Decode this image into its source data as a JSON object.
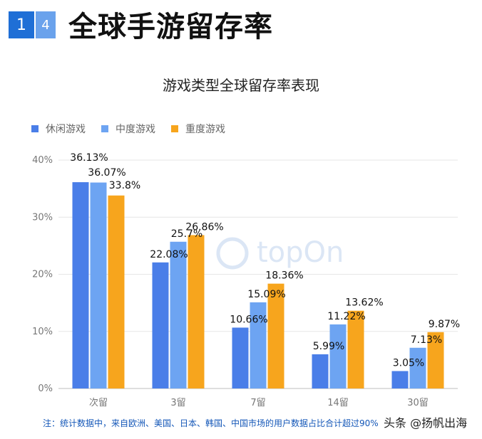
{
  "header": {
    "badge_1": "1",
    "badge_2": "4",
    "title": "全球手游留存率"
  },
  "colors": {
    "casual": "#4a7ee8",
    "midcore": "#6da4f2",
    "hardcore": "#f7a51d"
  },
  "chart_data": {
    "type": "bar",
    "title": "游戏类型全球留存率表现",
    "categories": [
      "次留",
      "3留",
      "7留",
      "14留",
      "30留"
    ],
    "series": [
      {
        "name": "休闲游戏",
        "values": [
          36.13,
          22.08,
          10.66,
          5.99,
          3.05
        ],
        "labels": [
          "36.13%",
          "22.08%",
          "10.66%",
          "5.99%",
          "3.05%"
        ]
      },
      {
        "name": "中度游戏",
        "values": [
          36.07,
          25.7,
          15.09,
          11.22,
          7.13
        ],
        "labels": [
          "36.07%",
          "25.7%",
          "15.09%",
          "11.22%",
          "7.13%"
        ]
      },
      {
        "name": "重度游戏",
        "values": [
          33.8,
          26.86,
          18.36,
          13.62,
          9.87
        ],
        "labels": [
          "33.8%",
          "26.86%",
          "18.36%",
          "13.62%",
          "9.87%"
        ]
      }
    ],
    "yticks": [
      "0%",
      "10%",
      "20%",
      "30%",
      "40%"
    ],
    "ylim": [
      0,
      40
    ],
    "grid": true,
    "legend": "top-left"
  },
  "watermark_logo": "topOn",
  "note": "注：统计数据中，来自欧洲、美国、日本、韩国、中国市场的用户数据占比合计超过90%",
  "source_watermark": "头条 @扬帆出海"
}
